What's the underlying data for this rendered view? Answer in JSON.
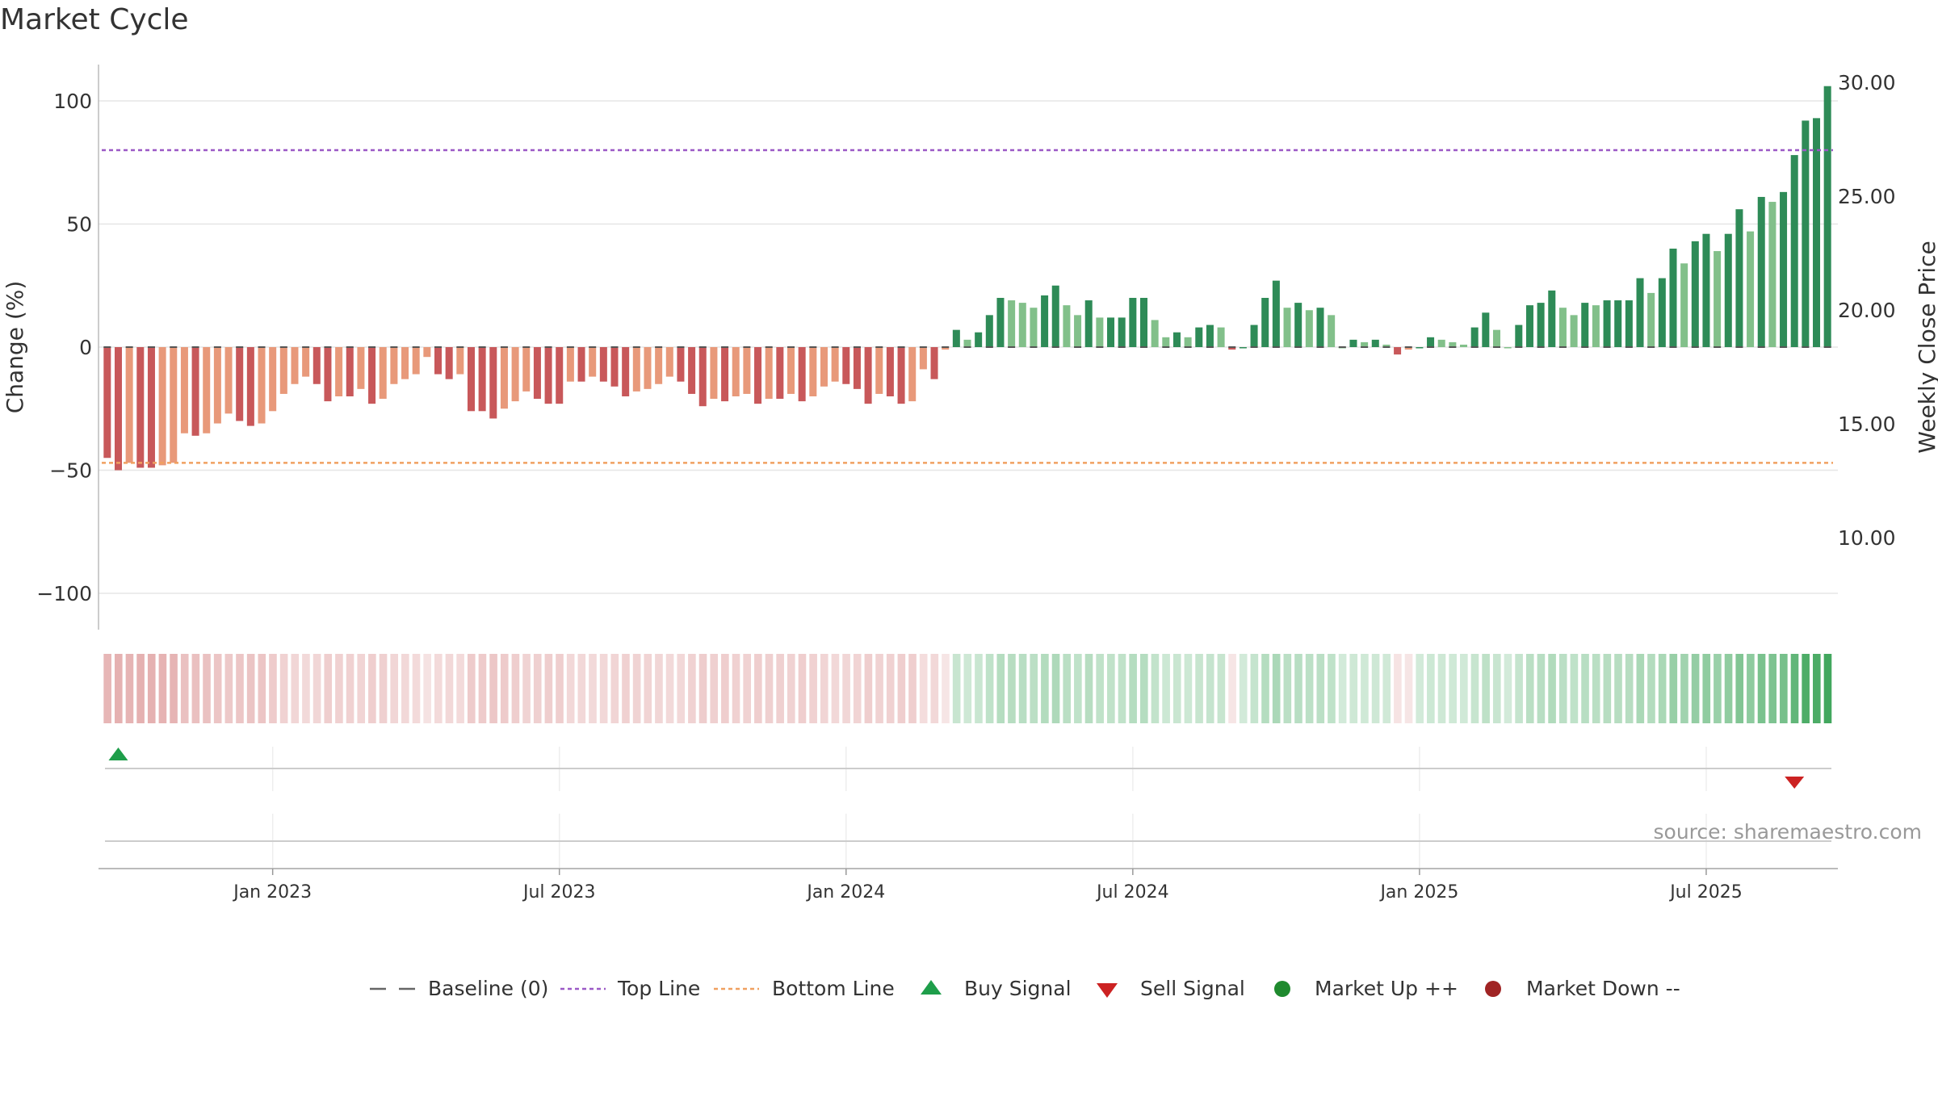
{
  "chart_data": {
    "type": "bar",
    "title": "Market Cycle",
    "ylabel_left": "Change (%)",
    "ylabel_right": "Weekly Close Price",
    "ylim_left": [
      -115,
      115
    ],
    "ylim_right": [
      5,
      30
    ],
    "left_ticks": [
      100,
      50,
      0,
      -50,
      -100
    ],
    "left_tick_labels": [
      "100",
      "50",
      "0",
      "−50",
      "−100"
    ],
    "right_ticks": [
      30,
      25,
      20,
      15,
      10
    ],
    "right_tick_labels": [
      "30.00",
      "25.00",
      "20.00",
      "15.00",
      "10.00"
    ],
    "x_tick_labels": [
      "Jan 2023",
      "Jul 2023",
      "Jan 2024",
      "Jul 2024",
      "Jan 2025",
      "Jul 2025"
    ],
    "x_tick_weeks": [
      15,
      41,
      67,
      93,
      119,
      145
    ],
    "top_line": 80,
    "bottom_line": -47,
    "baseline": 0,
    "grid": true,
    "source": "source: sharemaestro.com",
    "values": [
      -45,
      -50,
      -47,
      -49,
      -49,
      -48,
      -47,
      -35,
      -36,
      -35,
      -31,
      -27,
      -30,
      -32,
      -31,
      -26,
      -19,
      -15,
      -12,
      -15,
      -22,
      -20,
      -20,
      -17,
      -23,
      -21,
      -15,
      -13,
      -11,
      -4,
      -11,
      -13,
      -11,
      -26,
      -26,
      -29,
      -25,
      -22,
      -18,
      -21,
      -23,
      -23,
      -14,
      -14,
      -12,
      -14,
      -16,
      -20,
      -18,
      -17,
      -15,
      -12,
      -14,
      -19,
      -24,
      -21,
      -22,
      -20,
      -19,
      -23,
      -21,
      -21,
      -19,
      -22,
      -20,
      -16,
      -14,
      -15,
      -17,
      -23,
      -19,
      -20,
      -23,
      -22,
      -9,
      -13,
      -1,
      7,
      3,
      6,
      13,
      20,
      19,
      18,
      16,
      21,
      25,
      17,
      13,
      19,
      12,
      12,
      12,
      20,
      20,
      11,
      4,
      6,
      4,
      8,
      9,
      8,
      -1,
      0,
      9,
      20,
      27,
      16,
      18,
      15,
      16,
      13,
      0,
      3,
      2,
      3,
      1,
      -3,
      -1,
      0,
      4,
      3,
      2,
      1,
      8,
      14,
      7,
      0,
      9,
      17,
      18,
      23,
      16,
      13,
      18,
      17,
      19,
      19,
      19,
      28,
      22,
      28,
      40,
      34,
      43,
      46,
      39,
      46,
      56,
      47,
      61,
      59,
      63,
      78,
      92,
      93,
      106
    ],
    "signals": [
      {
        "type": "buy",
        "week": 1
      },
      {
        "type": "sell",
        "week": 153
      }
    ],
    "legend": [
      "Baseline (0)",
      "Top Line",
      "Bottom Line",
      "Buy Signal",
      "Sell Signal",
      "Market Up ++",
      "Market Down --"
    ],
    "colors": {
      "strong_up": "#2e8b57",
      "weak_up": "#82c08a",
      "strong_down": "#c8585a",
      "weak_down": "#e8997a",
      "top_line": "#9b59c6",
      "bottom_line": "#f0a060",
      "buy": "#1e9e4a",
      "sell": "#cc2222",
      "market_up": "#1f8a2e",
      "market_down": "#a02424"
    }
  }
}
